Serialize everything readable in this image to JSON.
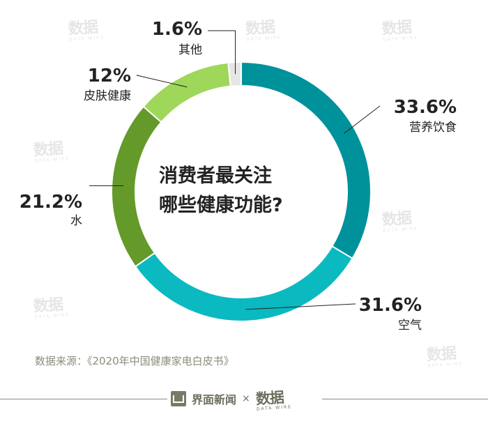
{
  "chart_data": {
    "type": "pie",
    "title": "消费者最关注哪些健康功能?",
    "title_lines": [
      "消费者最关注",
      "哪些健康功能?"
    ],
    "slices": [
      {
        "label": "营养饮食",
        "value": 33.6,
        "value_label": "33.6%",
        "color": "#00929a"
      },
      {
        "label": "空气",
        "value": 31.6,
        "value_label": "31.6%",
        "color": "#0bb9c1"
      },
      {
        "label": "水",
        "value": 21.2,
        "value_label": "21.2%",
        "color": "#649a29"
      },
      {
        "label": "皮肤健康",
        "value": 12,
        "value_label": "12%",
        "color": "#9fd75a"
      },
      {
        "label": "其他",
        "value": 1.6,
        "value_label": "1.6%",
        "color": "#e6e6e6"
      }
    ],
    "donut": true
  },
  "source": "数据来源：《2020年中国健康家电白皮书》",
  "footer": {
    "publisher": "界面新闻",
    "separator": "×",
    "partner": "数据",
    "partner_sub": "DATA WIRE"
  },
  "watermark": {
    "text": "数据",
    "sub": "DATA WIRE",
    "color": "#e6e6e6"
  }
}
